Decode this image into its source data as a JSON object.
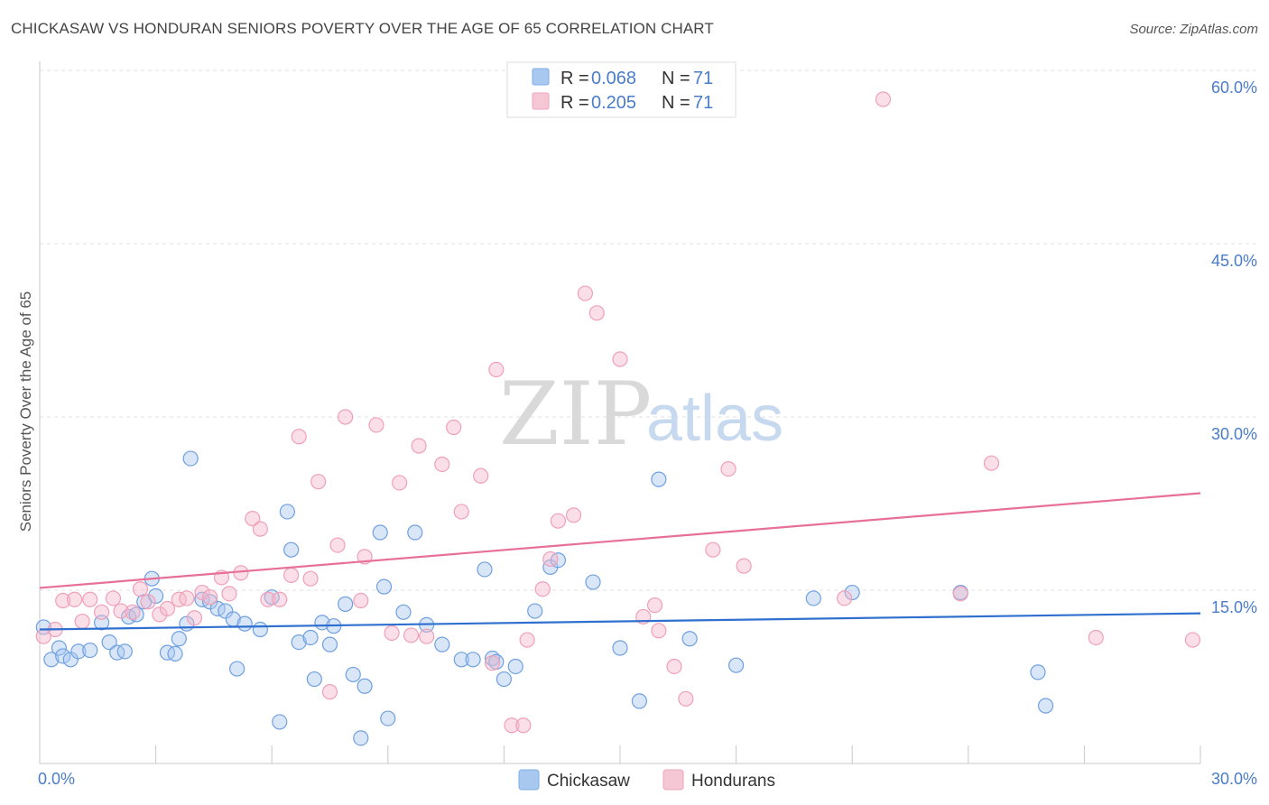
{
  "header": {
    "title": "CHICKASAW VS HONDURAN SENIORS POVERTY OVER THE AGE OF 65 CORRELATION CHART",
    "source": "Source: ZipAtlas.com"
  },
  "watermark": {
    "part1": "ZIP",
    "part2": "atlas"
  },
  "legend_top": [
    {
      "r_label": "R =",
      "r_value": "0.068",
      "n_label": "N =",
      "n_value": "71",
      "color": "#a8c8f0"
    },
    {
      "r_label": "R =",
      "r_value": "0.205",
      "n_label": "N =",
      "n_value": "71",
      "color": "#f5b8cb"
    }
  ],
  "legend_bottom": [
    {
      "label": "Chickasaw",
      "color": "#a8c8f0"
    },
    {
      "label": "Hondurans",
      "color": "#f5b8cb"
    }
  ],
  "chart_data": {
    "type": "scatter",
    "title": "CHICKASAW VS HONDURAN SENIORS POVERTY OVER THE AGE OF 65 CORRELATION CHART",
    "xlabel": "",
    "ylabel": "Seniors Poverty Over the Age of 65",
    "xlim": [
      0,
      30
    ],
    "ylim": [
      0,
      60
    ],
    "x_tick_labels": [
      "0.0%",
      "30.0%"
    ],
    "y_tick_labels": [
      "15.0%",
      "30.0%",
      "45.0%",
      "60.0%"
    ],
    "y_ticks": [
      15,
      30,
      45,
      60
    ],
    "grid": true,
    "legend_position": "top-center",
    "series": [
      {
        "name": "Chickasaw",
        "color": "#6fa0e0",
        "fill": "#a8c8f0",
        "trend_color": "#2e6fcf",
        "trend": [
          [
            0,
            11.6
          ],
          [
            30,
            13.0
          ]
        ],
        "points": [
          [
            0.1,
            11.8
          ],
          [
            0.3,
            9.0
          ],
          [
            0.5,
            10.0
          ],
          [
            0.6,
            9.3
          ],
          [
            0.8,
            9.0
          ],
          [
            1.0,
            9.7
          ],
          [
            1.3,
            9.8
          ],
          [
            1.6,
            12.2
          ],
          [
            1.8,
            10.5
          ],
          [
            2.0,
            9.6
          ],
          [
            2.2,
            9.7
          ],
          [
            2.3,
            12.7
          ],
          [
            2.5,
            12.9
          ],
          [
            2.7,
            14.0
          ],
          [
            2.9,
            16.0
          ],
          [
            3.0,
            14.5
          ],
          [
            3.3,
            9.6
          ],
          [
            3.5,
            9.5
          ],
          [
            3.6,
            10.8
          ],
          [
            3.8,
            12.1
          ],
          [
            3.9,
            26.4
          ],
          [
            4.2,
            14.2
          ],
          [
            4.4,
            14.0
          ],
          [
            4.6,
            13.4
          ],
          [
            4.8,
            13.2
          ],
          [
            5.0,
            12.5
          ],
          [
            5.1,
            8.2
          ],
          [
            5.3,
            12.1
          ],
          [
            5.7,
            11.6
          ],
          [
            6.0,
            14.4
          ],
          [
            6.2,
            3.6
          ],
          [
            6.4,
            21.8
          ],
          [
            6.5,
            18.5
          ],
          [
            6.7,
            10.5
          ],
          [
            7.0,
            10.9
          ],
          [
            7.1,
            7.3
          ],
          [
            7.3,
            12.2
          ],
          [
            7.5,
            10.3
          ],
          [
            7.6,
            11.9
          ],
          [
            7.9,
            13.8
          ],
          [
            8.1,
            7.7
          ],
          [
            8.3,
            2.2
          ],
          [
            8.4,
            6.7
          ],
          [
            8.8,
            20.0
          ],
          [
            8.9,
            15.3
          ],
          [
            9.0,
            3.9
          ],
          [
            9.4,
            13.1
          ],
          [
            9.7,
            20.0
          ],
          [
            10.0,
            12.0
          ],
          [
            10.4,
            10.3
          ],
          [
            10.9,
            9.0
          ],
          [
            11.2,
            9.0
          ],
          [
            11.5,
            16.8
          ],
          [
            11.7,
            9.1
          ],
          [
            11.8,
            8.8
          ],
          [
            12.0,
            7.3
          ],
          [
            12.3,
            8.4
          ],
          [
            12.8,
            13.2
          ],
          [
            13.2,
            17.0
          ],
          [
            13.4,
            17.6
          ],
          [
            14.3,
            15.7
          ],
          [
            15.0,
            10.0
          ],
          [
            15.5,
            5.4
          ],
          [
            16.0,
            24.6
          ],
          [
            16.8,
            10.8
          ],
          [
            18.0,
            8.5
          ],
          [
            20.0,
            14.3
          ],
          [
            21.0,
            14.8
          ],
          [
            23.8,
            14.8
          ],
          [
            25.8,
            7.9
          ],
          [
            26.0,
            5.0
          ]
        ]
      },
      {
        "name": "Hondurans",
        "color": "#f0a0b8",
        "fill": "#f5b8cb",
        "trend_color": "#e76f98",
        "trend": [
          [
            0,
            15.2
          ],
          [
            30,
            23.4
          ]
        ],
        "points": [
          [
            0.1,
            11.0
          ],
          [
            0.4,
            11.6
          ],
          [
            0.6,
            14.1
          ],
          [
            0.9,
            14.2
          ],
          [
            1.1,
            12.3
          ],
          [
            1.3,
            14.2
          ],
          [
            1.6,
            13.1
          ],
          [
            1.9,
            14.3
          ],
          [
            2.1,
            13.2
          ],
          [
            2.4,
            13.1
          ],
          [
            2.6,
            15.1
          ],
          [
            2.8,
            14.0
          ],
          [
            3.1,
            12.9
          ],
          [
            3.3,
            13.4
          ],
          [
            3.6,
            14.2
          ],
          [
            3.8,
            14.3
          ],
          [
            4.0,
            12.6
          ],
          [
            4.2,
            14.8
          ],
          [
            4.4,
            14.4
          ],
          [
            4.7,
            16.1
          ],
          [
            4.9,
            14.7
          ],
          [
            5.2,
            16.5
          ],
          [
            5.5,
            21.2
          ],
          [
            5.7,
            20.3
          ],
          [
            5.9,
            14.2
          ],
          [
            6.2,
            14.2
          ],
          [
            6.5,
            16.3
          ],
          [
            6.7,
            28.3
          ],
          [
            7.0,
            16.0
          ],
          [
            7.2,
            24.4
          ],
          [
            7.5,
            6.2
          ],
          [
            7.7,
            18.9
          ],
          [
            7.9,
            30.0
          ],
          [
            8.3,
            14.1
          ],
          [
            8.4,
            17.9
          ],
          [
            8.7,
            29.3
          ],
          [
            9.1,
            11.3
          ],
          [
            9.3,
            24.3
          ],
          [
            9.6,
            11.1
          ],
          [
            9.8,
            27.5
          ],
          [
            10.0,
            11.0
          ],
          [
            10.4,
            25.9
          ],
          [
            10.7,
            29.1
          ],
          [
            10.9,
            21.8
          ],
          [
            11.4,
            24.9
          ],
          [
            11.7,
            8.7
          ],
          [
            11.8,
            34.1
          ],
          [
            12.2,
            3.3
          ],
          [
            12.5,
            3.3
          ],
          [
            12.6,
            10.7
          ],
          [
            13.0,
            15.1
          ],
          [
            13.2,
            17.7
          ],
          [
            13.4,
            21.0
          ],
          [
            13.8,
            21.5
          ],
          [
            14.1,
            40.7
          ],
          [
            14.4,
            39.0
          ],
          [
            15.0,
            35.0
          ],
          [
            15.6,
            12.7
          ],
          [
            15.9,
            13.7
          ],
          [
            16.0,
            11.5
          ],
          [
            16.4,
            8.4
          ],
          [
            16.7,
            5.6
          ],
          [
            17.4,
            18.5
          ],
          [
            17.8,
            25.5
          ],
          [
            18.2,
            17.1
          ],
          [
            20.8,
            14.3
          ],
          [
            21.8,
            57.5
          ],
          [
            23.8,
            14.7
          ],
          [
            24.6,
            26.0
          ],
          [
            27.3,
            10.9
          ],
          [
            29.8,
            10.7
          ]
        ]
      }
    ]
  }
}
